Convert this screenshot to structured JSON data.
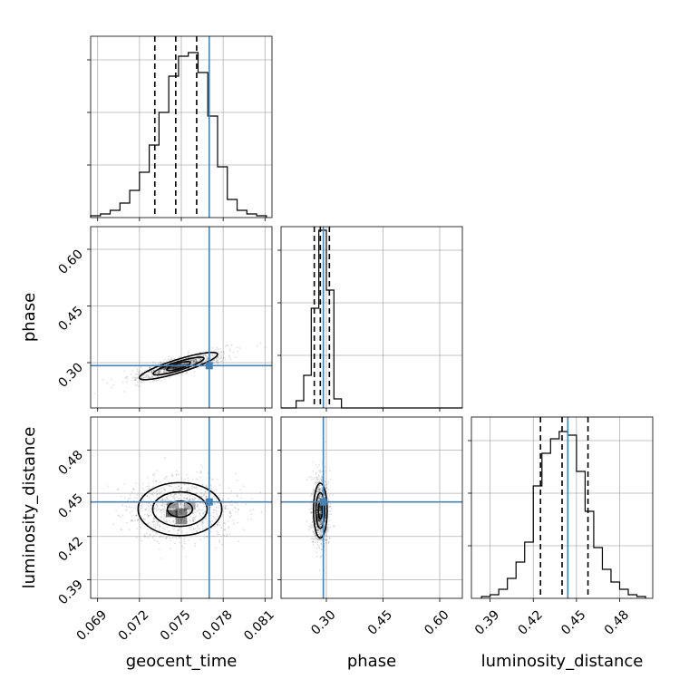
{
  "chart_data": {
    "type": "corner",
    "parameters": [
      "geocent_time",
      "phase",
      "luminosity_distance"
    ],
    "truth": {
      "geocent_time": 0.077,
      "phase": 0.292,
      "luminosity_distance": 0.444
    },
    "quantiles": {
      "geocent_time": [
        0.0731,
        0.0746,
        0.0761
      ],
      "phase": [
        0.268,
        0.284,
        0.308
      ],
      "luminosity_distance": [
        0.425,
        0.44,
        0.458
      ]
    },
    "truth_color": "#4682b4",
    "grid": true,
    "panels": [
      {
        "id": "hist-geocent_time",
        "kind": "histogram",
        "x": "geocent_time",
        "xlim": [
          0.0685,
          0.0815
        ],
        "xticks": [
          0.069,
          0.072,
          0.075,
          0.078,
          0.081
        ],
        "bin_edges": [
          0.0685,
          0.0692,
          0.0699,
          0.0706,
          0.0713,
          0.072,
          0.0727,
          0.0734,
          0.0741,
          0.0748,
          0.0755,
          0.0762,
          0.0769,
          0.0776,
          0.0783,
          0.079,
          0.0797,
          0.0804,
          0.0811
        ],
        "counts": [
          0.01,
          0.02,
          0.04,
          0.08,
          0.15,
          0.25,
          0.4,
          0.58,
          0.78,
          0.89,
          0.91,
          0.8,
          0.56,
          0.28,
          0.1,
          0.04,
          0.02,
          0.01
        ],
        "ylim": [
          0,
          1
        ]
      },
      {
        "id": "hist-phase",
        "kind": "histogram",
        "x": "phase",
        "xlim": [
          0.18,
          0.66
        ],
        "xticks": [
          0.3,
          0.45,
          0.6
        ],
        "bin_edges": [
          0.18,
          0.2,
          0.22,
          0.24,
          0.26,
          0.28,
          0.3,
          0.32,
          0.34,
          0.36,
          0.38,
          0.4,
          0.42,
          0.44,
          0.46,
          0.48,
          0.5,
          0.52,
          0.54,
          0.56,
          0.58,
          0.6,
          0.62,
          0.64,
          0.66
        ],
        "counts": [
          0.0,
          0.0,
          0.04,
          0.18,
          0.55,
          0.98,
          0.65,
          0.05,
          0.0,
          0.0,
          0.0,
          0.0,
          0.0,
          0.0,
          0.0,
          0.0,
          0.0,
          0.0,
          0.0,
          0.0,
          0.0,
          0.0,
          0.0,
          0.0
        ],
        "ylim": [
          0,
          1
        ]
      },
      {
        "id": "hist-luminosity_distance",
        "kind": "histogram",
        "x": "luminosity_distance",
        "xlim": [
          0.377,
          0.503
        ],
        "xticks": [
          0.39,
          0.42,
          0.45,
          0.48
        ],
        "bin_edges": [
          0.384,
          0.39,
          0.396,
          0.402,
          0.408,
          0.414,
          0.42,
          0.426,
          0.432,
          0.438,
          0.444,
          0.45,
          0.456,
          0.462,
          0.468,
          0.474,
          0.48,
          0.486,
          0.492,
          0.498
        ],
        "counts": [
          0.01,
          0.02,
          0.05,
          0.11,
          0.2,
          0.31,
          0.62,
          0.8,
          0.88,
          0.92,
          0.9,
          0.7,
          0.48,
          0.28,
          0.16,
          0.09,
          0.05,
          0.02,
          0.01
        ],
        "ylim": [
          0,
          1
        ]
      },
      {
        "id": "joint-phase-geocent_time",
        "kind": "joint",
        "x": "geocent_time",
        "y": "phase",
        "xlim": [
          0.0685,
          0.0815
        ],
        "ylim": [
          0.18,
          0.66
        ],
        "yticks": [
          0.3,
          0.45,
          0.6
        ],
        "center": [
          0.0748,
          0.291
        ],
        "spread": [
          0.0014,
          0.016
        ],
        "correlation": 0.85,
        "peak_points": [
          [
            0.0738,
            0.288
          ],
          [
            0.0746,
            0.29
          ],
          [
            0.0752,
            0.291
          ],
          [
            0.0744,
            0.289
          ]
        ]
      },
      {
        "id": "joint-luminosity_distance-geocent_time",
        "kind": "joint",
        "x": "geocent_time",
        "y": "luminosity_distance",
        "xlim": [
          0.0685,
          0.0815
        ],
        "ylim": [
          0.377,
          0.503
        ],
        "yticks": [
          0.39,
          0.42,
          0.45,
          0.48
        ],
        "center": [
          0.0749,
          0.439
        ],
        "spread": [
          0.0015,
          0.0092
        ],
        "correlation": 0.0,
        "peak_points": [
          [
            0.0743,
            0.436
          ],
          [
            0.075,
            0.437
          ],
          [
            0.075,
            0.431
          ],
          [
            0.0744,
            0.442
          ],
          [
            0.0756,
            0.441
          ]
        ]
      },
      {
        "id": "joint-luminosity_distance-phase",
        "kind": "joint",
        "x": "phase",
        "y": "luminosity_distance",
        "xlim": [
          0.18,
          0.66
        ],
        "ylim": [
          0.377,
          0.503
        ],
        "center": [
          0.284,
          0.438
        ],
        "spread": [
          0.009,
          0.0095
        ],
        "correlation": 0.0,
        "peak_points": [
          [
            0.283,
            0.44
          ],
          [
            0.281,
            0.433
          ]
        ]
      }
    ]
  }
}
